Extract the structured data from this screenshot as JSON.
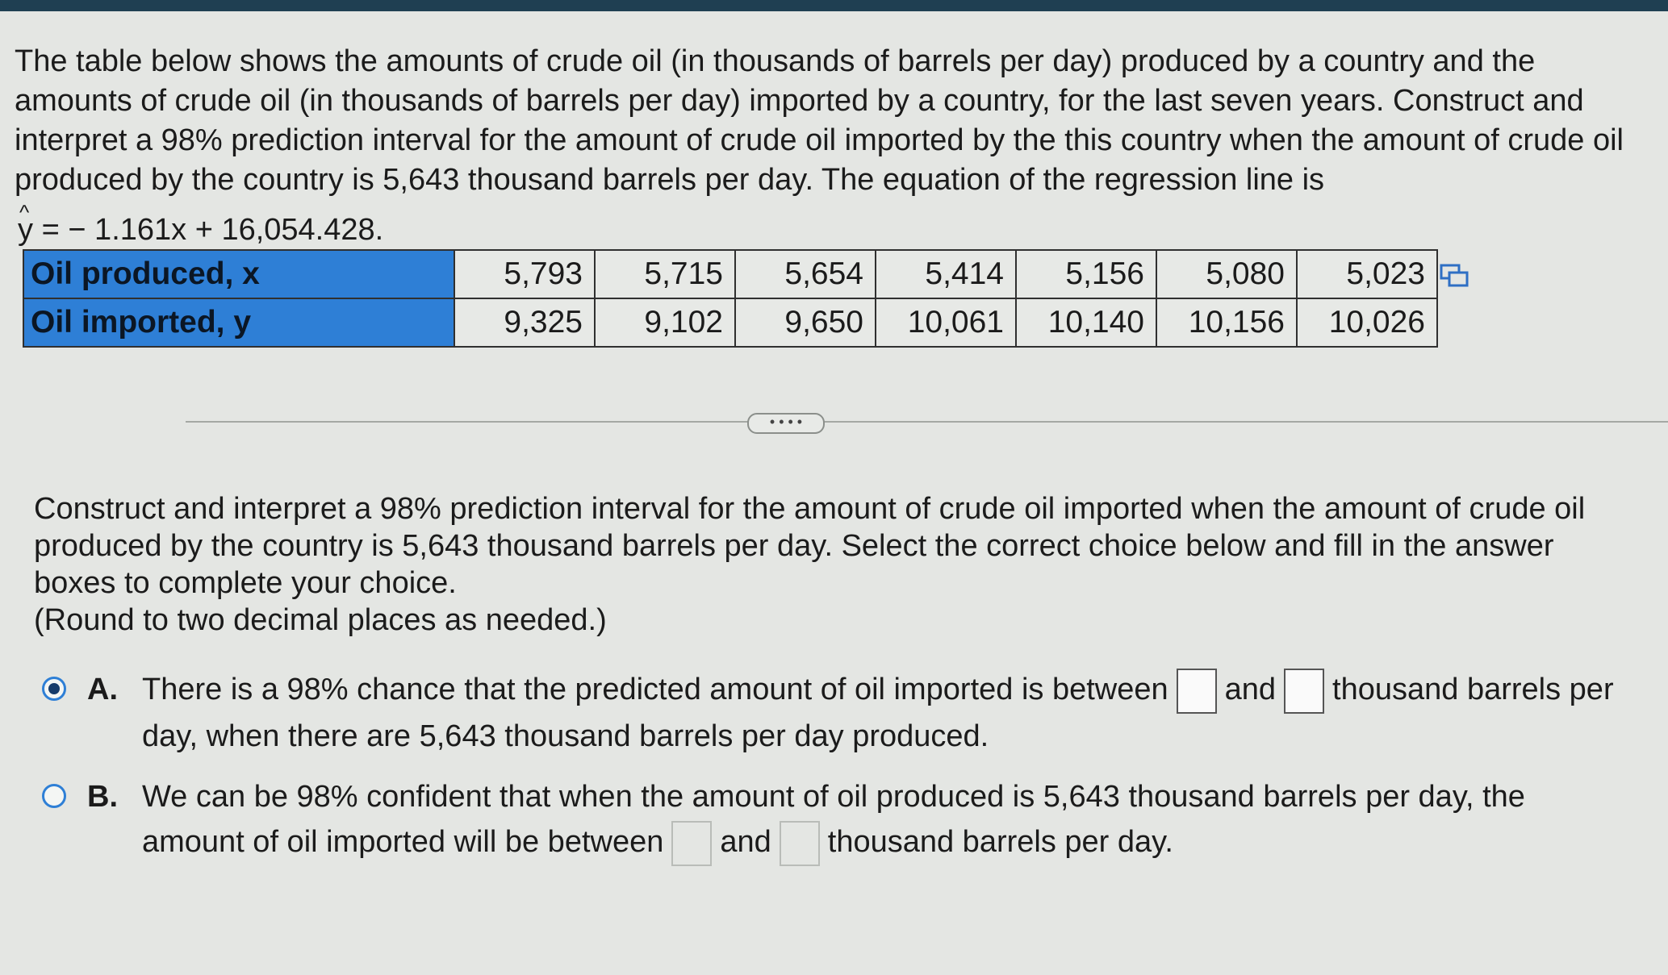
{
  "question": {
    "text": "The table below shows the amounts of crude oil (in thousands of barrels per day) produced by a country and the amounts of crude oil (in thousands of barrels per day) imported by a country, for the last seven years. Construct and interpret a 98% prediction interval for the amount of crude oil imported by the this country when the amount of crude oil produced by the country is 5,643 thousand barrels per day. The equation of the regression line is",
    "equation_lhs": "y",
    "equation_rhs": "= − 1.161x + 16,054.428."
  },
  "table": {
    "rows": [
      {
        "label": "Oil produced, x",
        "values": [
          "5,793",
          "5,715",
          "5,654",
          "5,414",
          "5,156",
          "5,080",
          "5,023"
        ]
      },
      {
        "label": "Oil imported, y",
        "values": [
          "9,325",
          "9,102",
          "9,650",
          "10,061",
          "10,140",
          "10,156",
          "10,026"
        ]
      }
    ]
  },
  "more_button": "• • • •",
  "prompt": {
    "text": "Construct and interpret a 98% prediction interval for the amount of crude oil imported when the amount of crude oil produced by the country is 5,643 thousand barrels per day. Select the correct choice below and fill in the answer boxes to complete your choice.",
    "round_note": "(Round to two decimal places as needed.)"
  },
  "choices": {
    "a": {
      "letter": "A.",
      "text_before": "There is a 98% chance that the predicted amount of oil imported is between",
      "text_middle": "and",
      "text_after": "thousand barrels per day, when there are 5,643 thousand barrels per day produced.",
      "selected": true
    },
    "b": {
      "letter": "B.",
      "text_before": "We can be 98% confident that when the amount of oil produced is 5,643 thousand barrels per day, the amount of oil imported will be between",
      "text_middle": "and",
      "text_after": "thousand barrels per day.",
      "selected": false
    }
  },
  "colors": {
    "header_cell": "#2e7fd6",
    "radio_selected": "#163b6a",
    "top_band": "#1f3f52"
  },
  "icons": {
    "copy": "copy-table-icon",
    "more": "ellipsis-icon"
  }
}
